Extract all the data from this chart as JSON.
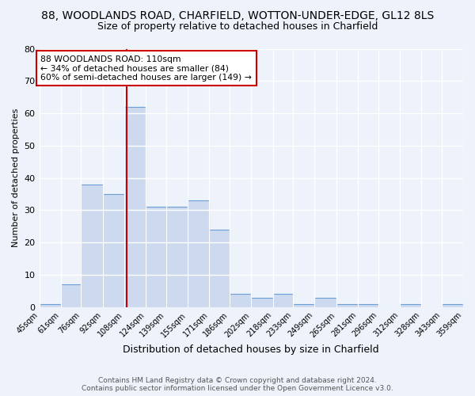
{
  "title": "88, WOODLANDS ROAD, CHARFIELD, WOTTON-UNDER-EDGE, GL12 8LS",
  "subtitle": "Size of property relative to detached houses in Charfield",
  "xlabel": "Distribution of detached houses by size in Charfield",
  "ylabel": "Number of detached properties",
  "bins": [
    45,
    61,
    76,
    92,
    108,
    124,
    139,
    155,
    171,
    186,
    202,
    218,
    233,
    249,
    265,
    281,
    296,
    312,
    328,
    343,
    359
  ],
  "bin_labels": [
    "45sqm",
    "61sqm",
    "76sqm",
    "92sqm",
    "108sqm",
    "124sqm",
    "139sqm",
    "155sqm",
    "171sqm",
    "186sqm",
    "202sqm",
    "218sqm",
    "233sqm",
    "249sqm",
    "265sqm",
    "281sqm",
    "296sqm",
    "312sqm",
    "328sqm",
    "343sqm",
    "359sqm"
  ],
  "counts": [
    1,
    7,
    38,
    35,
    62,
    31,
    31,
    33,
    24,
    4,
    3,
    4,
    1,
    3,
    1,
    1,
    0,
    1,
    0,
    1
  ],
  "bar_color": "#ccd9ee",
  "bar_edge_color": "#6a9fd8",
  "vline_x": 110,
  "vline_color": "#cc0000",
  "ylim": [
    0,
    80
  ],
  "yticks": [
    0,
    10,
    20,
    30,
    40,
    50,
    60,
    70,
    80
  ],
  "annotation_text": "88 WOODLANDS ROAD: 110sqm\n← 34% of detached houses are smaller (84)\n60% of semi-detached houses are larger (149) →",
  "annotation_box_color": "#ffffff",
  "annotation_box_edge": "#cc0000",
  "bg_color": "#edf2fb",
  "plot_bg_color": "#edf2fb",
  "footer_line1": "Contains HM Land Registry data © Crown copyright and database right 2024.",
  "footer_line2": "Contains public sector information licensed under the Open Government Licence v3.0.",
  "grid_color": "#ffffff",
  "title_fontsize": 10,
  "subtitle_fontsize": 9
}
